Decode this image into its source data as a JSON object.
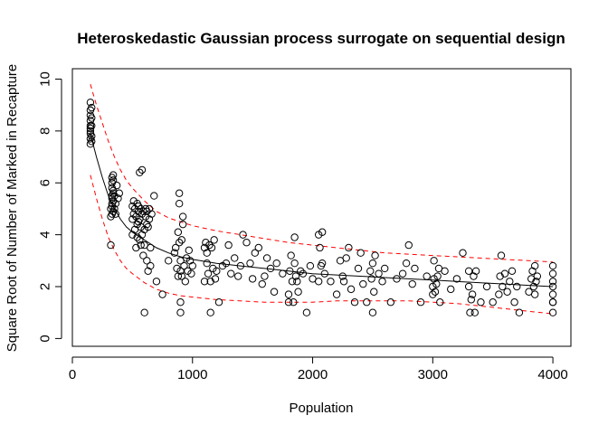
{
  "chart_data": {
    "type": "scatter",
    "title": "Heteroskedastic Gaussian process surrogate on sequential design",
    "xlabel": "Population",
    "ylabel": "Square Root of Number of Marked in Recapture",
    "xlim": [
      0,
      4150
    ],
    "ylim": [
      -0.3,
      10.4
    ],
    "x_ticks": [
      0,
      1000,
      2000,
      3000,
      4000
    ],
    "y_ticks": [
      0,
      2,
      4,
      6,
      8,
      10
    ],
    "grid": false,
    "legend": "none",
    "colors": {
      "points": "#000000",
      "mean": "#000000",
      "interval": "#ff0000"
    },
    "series": [
      {
        "kind": "points",
        "x": [
          150,
          150,
          150,
          150,
          150,
          150,
          150,
          150,
          150,
          150,
          160,
          160,
          160,
          160,
          160,
          320,
          320,
          320,
          330,
          330,
          330,
          330,
          330,
          330,
          330,
          330,
          340,
          340,
          340,
          340,
          340,
          340,
          350,
          350,
          360,
          360,
          370,
          380,
          390,
          500,
          500,
          500,
          510,
          510,
          520,
          520,
          530,
          530,
          540,
          540,
          540,
          550,
          550,
          550,
          560,
          560,
          560,
          570,
          570,
          570,
          580,
          580,
          580,
          590,
          590,
          600,
          600,
          600,
          610,
          610,
          620,
          620,
          620,
          630,
          630,
          640,
          640,
          650,
          650,
          660,
          680,
          700,
          750,
          800,
          850,
          860,
          870,
          880,
          880,
          890,
          890,
          890,
          900,
          900,
          900,
          900,
          910,
          910,
          920,
          920,
          930,
          940,
          950,
          960,
          970,
          980,
          990,
          1000,
          1100,
          1100,
          1110,
          1120,
          1120,
          1130,
          1140,
          1150,
          1150,
          1160,
          1170,
          1180,
          1190,
          1200,
          1220,
          1250,
          1280,
          1300,
          1320,
          1350,
          1380,
          1400,
          1420,
          1450,
          1480,
          1500,
          1520,
          1550,
          1580,
          1600,
          1620,
          1650,
          1680,
          1700,
          1750,
          1800,
          1800,
          1810,
          1820,
          1830,
          1840,
          1850,
          1850,
          1860,
          1870,
          1880,
          1900,
          1920,
          1950,
          1980,
          2000,
          2050,
          2050,
          2060,
          2070,
          2080,
          2080,
          2100,
          2150,
          2200,
          2230,
          2250,
          2260,
          2280,
          2300,
          2320,
          2350,
          2380,
          2400,
          2420,
          2450,
          2480,
          2490,
          2500,
          2500,
          2510,
          2520,
          2550,
          2580,
          2600,
          2650,
          2700,
          2750,
          2780,
          2800,
          2830,
          2850,
          2900,
          2950,
          3000,
          3000,
          3010,
          3010,
          3020,
          3030,
          3040,
          3050,
          3060,
          3100,
          3150,
          3200,
          3250,
          3300,
          3300,
          3310,
          3320,
          3330,
          3340,
          3350,
          3360,
          3400,
          3450,
          3500,
          3550,
          3560,
          3570,
          3580,
          3600,
          3620,
          3640,
          3660,
          3680,
          3700,
          3720,
          3800,
          3820,
          3830,
          3840,
          3850,
          3850,
          3860,
          3870,
          4000,
          4000,
          4000,
          4000,
          4000,
          4000,
          4000,
          4000
        ],
        "y": [
          7.5,
          7.7,
          7.9,
          8.0,
          8.1,
          8.2,
          8.4,
          8.6,
          8.8,
          9.1,
          7.6,
          7.8,
          8.2,
          8.5,
          8.9,
          3.6,
          4.7,
          5.0,
          5.2,
          5.5,
          5.8,
          6.0,
          6.2,
          4.8,
          5.1,
          5.4,
          4.9,
          5.3,
          5.6,
          6.1,
          6.3,
          5.7,
          5.0,
          5.5,
          4.8,
          5.2,
          5.9,
          5.4,
          5.6,
          5.1,
          4.0,
          4.6,
          4.8,
          5.3,
          5.0,
          4.2,
          3.5,
          4.7,
          5.2,
          4.4,
          3.9,
          4.9,
          5.1,
          4.5,
          3.8,
          4.6,
          6.4,
          5.0,
          4.3,
          3.6,
          4.8,
          4.0,
          6.5,
          3.2,
          4.9,
          4.2,
          1.0,
          3.6,
          4.7,
          5.0,
          3.0,
          4.4,
          4.9,
          2.6,
          4.3,
          4.6,
          5.0,
          2.8,
          3.5,
          4.8,
          5.5,
          2.2,
          1.7,
          3.0,
          3.3,
          3.5,
          2.7,
          2.4,
          4.1,
          3.7,
          5.2,
          5.6,
          1.0,
          1.4,
          2.6,
          3.0,
          2.4,
          3.8,
          4.4,
          4.7,
          2.8,
          2.2,
          3.1,
          2.6,
          3.4,
          3.0,
          2.5,
          2.8,
          2.2,
          3.5,
          3.7,
          3.3,
          2.9,
          2.5,
          3.6,
          1.0,
          2.2,
          3.5,
          2.7,
          3.8,
          2.3,
          2.6,
          1.4,
          2.8,
          2.9,
          3.6,
          2.5,
          3.1,
          2.4,
          2.8,
          4.0,
          3.7,
          2.9,
          2.3,
          3.3,
          3.5,
          2.1,
          2.4,
          3.1,
          2.7,
          1.8,
          2.9,
          2.5,
          1.4,
          1.7,
          2.6,
          3.2,
          2.2,
          1.4,
          2.9,
          3.9,
          2.4,
          2.2,
          1.8,
          2.6,
          2.5,
          1.0,
          2.8,
          2.3,
          2.2,
          4.0,
          3.5,
          2.8,
          4.1,
          2.9,
          2.5,
          2.2,
          1.7,
          3.0,
          2.4,
          2.2,
          3.1,
          3.5,
          1.9,
          1.4,
          2.7,
          3.3,
          2.1,
          1.4,
          2.6,
          2.3,
          1.0,
          2.9,
          1.8,
          3.2,
          2.5,
          2.2,
          2.7,
          1.4,
          2.3,
          2.5,
          2.9,
          3.6,
          2.1,
          2.7,
          1.4,
          2.4,
          2.0,
          1.7,
          2.3,
          3.0,
          1.8,
          2.1,
          2.4,
          2.7,
          1.4,
          2.6,
          1.9,
          2.3,
          3.3,
          2.0,
          2.6,
          1.0,
          1.5,
          1.7,
          2.4,
          1.0,
          2.6,
          1.4,
          2.0,
          1.4,
          1.7,
          2.4,
          3.2,
          2.0,
          2.5,
          1.8,
          2.2,
          2.6,
          1.4,
          2.0,
          1.0,
          1.8,
          2.3,
          2.6,
          2.0,
          1.7,
          2.8,
          2.2,
          2.4,
          1.0,
          1.4,
          1.7,
          2.0,
          2.2,
          2.5,
          2.8,
          1.4
        ]
      },
      {
        "kind": "mean",
        "x": [
          150,
          200,
          250,
          300,
          350,
          400,
          450,
          500,
          600,
          700,
          800,
          900,
          1000,
          1200,
          1400,
          1600,
          1800,
          2000,
          2200,
          2400,
          2600,
          2800,
          3000,
          3200,
          3400,
          3600,
          3800,
          4000
        ],
        "y": [
          7.9,
          7.0,
          6.2,
          5.5,
          5.0,
          4.6,
          4.3,
          4.1,
          3.8,
          3.5,
          3.3,
          3.15,
          3.05,
          2.9,
          2.8,
          2.7,
          2.6,
          2.5,
          2.45,
          2.4,
          2.35,
          2.3,
          2.25,
          2.2,
          2.15,
          2.1,
          2.05,
          2.0
        ]
      },
      {
        "kind": "upper",
        "x": [
          150,
          200,
          250,
          300,
          350,
          400,
          450,
          500,
          600,
          700,
          800,
          900,
          1000,
          1200,
          1400,
          1600,
          1800,
          2000,
          2200,
          2400,
          2600,
          2800,
          3000,
          3200,
          3400,
          3600,
          3800,
          4000
        ],
        "y": [
          9.8,
          9.0,
          8.3,
          7.6,
          7.0,
          6.5,
          6.1,
          5.8,
          5.3,
          4.9,
          4.65,
          4.5,
          4.35,
          4.15,
          4.0,
          3.85,
          3.7,
          3.6,
          3.5,
          3.4,
          3.3,
          3.25,
          3.2,
          3.15,
          3.1,
          3.05,
          3.0,
          2.95
        ]
      },
      {
        "kind": "lower",
        "x": [
          150,
          200,
          250,
          300,
          350,
          400,
          450,
          500,
          600,
          700,
          800,
          900,
          1000,
          1200,
          1400,
          1600,
          1800,
          2000,
          2200,
          2400,
          2600,
          2800,
          3000,
          3200,
          3400,
          3600,
          3800,
          4000
        ],
        "y": [
          6.3,
          5.4,
          4.6,
          3.9,
          3.4,
          3.0,
          2.7,
          2.5,
          2.15,
          1.9,
          1.75,
          1.65,
          1.6,
          1.5,
          1.45,
          1.4,
          1.4,
          1.4,
          1.45,
          1.45,
          1.45,
          1.45,
          1.4,
          1.35,
          1.25,
          1.15,
          1.05,
          0.95
        ]
      }
    ]
  }
}
